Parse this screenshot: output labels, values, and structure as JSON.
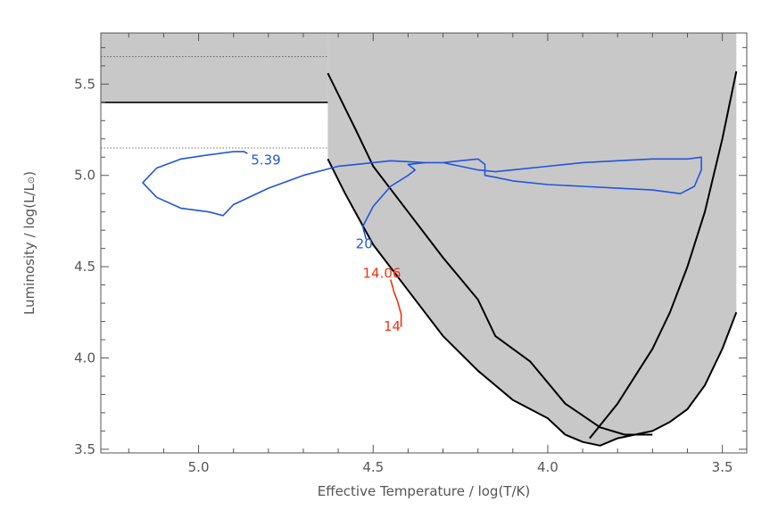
{
  "chart_data": {
    "type": "line",
    "title": "",
    "xlabel": "Effective Temperature / log(T/K)",
    "ylabel": "Luminosity / log(L/L",
    "ylabel_symbol": "⊙",
    "ylabel_close": ")",
    "xlim": [
      5.28,
      3.43
    ],
    "ylim": [
      3.48,
      5.78
    ],
    "x_ticks": [
      5.0,
      4.5,
      4.0,
      3.5
    ],
    "x_tick_labels": [
      "5.0",
      "4.5",
      "4.0",
      "3.5"
    ],
    "y_ticks": [
      3.5,
      4.0,
      4.5,
      5.0,
      5.5
    ],
    "y_tick_labels": [
      "3.5",
      "4.0",
      "4.5",
      "5.0",
      "5.5"
    ],
    "grid": false,
    "colors": {
      "shade": "#c8c8c8",
      "boundary": "#000000",
      "track_blue": "#2255dd",
      "track_red": "#ee3311",
      "text": "#555555"
    },
    "shaded_region": {
      "upper_band": {
        "x_start": 5.28,
        "x_end": 4.63,
        "y_bottom": 5.4
      },
      "main": {
        "x_left": 4.63,
        "x_right": 3.46,
        "lower_edge": [
          [
            4.63,
            5.09
          ],
          [
            4.58,
            4.9
          ],
          [
            4.5,
            4.62
          ],
          [
            4.4,
            4.37
          ],
          [
            4.3,
            4.12
          ],
          [
            4.2,
            3.93
          ],
          [
            4.1,
            3.77
          ],
          [
            4.0,
            3.67
          ],
          [
            3.95,
            3.58
          ],
          [
            3.9,
            3.54
          ],
          [
            3.85,
            3.52
          ],
          [
            3.8,
            3.56
          ],
          [
            3.75,
            3.58
          ],
          [
            3.7,
            3.6
          ],
          [
            3.65,
            3.65
          ],
          [
            3.6,
            3.72
          ],
          [
            3.55,
            3.85
          ],
          [
            3.5,
            4.05
          ],
          [
            3.46,
            4.25
          ]
        ]
      }
    },
    "horizontal_lines": [
      {
        "name": "solid",
        "y": 5.4,
        "x_start": 5.28,
        "x_end": 4.63,
        "style": "solid"
      },
      {
        "name": "dotted-upper",
        "y": 5.65,
        "x_start": 5.28,
        "x_end": 4.63,
        "style": "dotted"
      },
      {
        "name": "dotted-lower",
        "y": 5.15,
        "x_start": 5.28,
        "x_end": 4.63,
        "style": "dotted"
      }
    ],
    "boundary_curves": [
      {
        "name": "boundary-lower",
        "points": [
          [
            4.63,
            5.09
          ],
          [
            4.58,
            4.9
          ],
          [
            4.5,
            4.62
          ],
          [
            4.4,
            4.37
          ],
          [
            4.3,
            4.12
          ],
          [
            4.2,
            3.93
          ],
          [
            4.1,
            3.77
          ],
          [
            4.0,
            3.67
          ],
          [
            3.95,
            3.58
          ],
          [
            3.9,
            3.54
          ],
          [
            3.85,
            3.52
          ],
          [
            3.8,
            3.56
          ],
          [
            3.75,
            3.58
          ],
          [
            3.7,
            3.6
          ],
          [
            3.65,
            3.65
          ],
          [
            3.6,
            3.72
          ],
          [
            3.55,
            3.85
          ],
          [
            3.5,
            4.05
          ],
          [
            3.46,
            4.25
          ]
        ]
      },
      {
        "name": "boundary-middle",
        "points": [
          [
            4.63,
            5.56
          ],
          [
            4.55,
            5.25
          ],
          [
            4.5,
            5.05
          ],
          [
            4.4,
            4.8
          ],
          [
            4.3,
            4.55
          ],
          [
            4.2,
            4.32
          ],
          [
            4.15,
            4.12
          ],
          [
            4.05,
            3.98
          ],
          [
            3.95,
            3.75
          ],
          [
            3.85,
            3.62
          ],
          [
            3.78,
            3.58
          ],
          [
            3.7,
            3.58
          ]
        ]
      },
      {
        "name": "boundary-right",
        "points": [
          [
            3.88,
            3.56
          ],
          [
            3.8,
            3.75
          ],
          [
            3.7,
            4.05
          ],
          [
            3.65,
            4.25
          ],
          [
            3.6,
            4.5
          ],
          [
            3.55,
            4.8
          ],
          [
            3.5,
            5.2
          ],
          [
            3.46,
            5.57
          ]
        ]
      }
    ],
    "series": [
      {
        "name": "20",
        "color": "#2255dd",
        "points": [
          [
            4.52,
            4.65
          ],
          [
            4.53,
            4.72
          ],
          [
            4.5,
            4.83
          ],
          [
            4.45,
            4.94
          ],
          [
            4.4,
            5.0
          ],
          [
            4.38,
            5.03
          ],
          [
            4.4,
            5.06
          ],
          [
            4.35,
            5.07
          ],
          [
            4.3,
            5.07
          ],
          [
            4.25,
            5.05
          ],
          [
            4.2,
            5.03
          ],
          [
            4.15,
            5.02
          ],
          [
            4.1,
            5.03
          ],
          [
            4.0,
            5.05
          ],
          [
            3.9,
            5.07
          ],
          [
            3.8,
            5.08
          ],
          [
            3.7,
            5.09
          ],
          [
            3.6,
            5.09
          ],
          [
            3.56,
            5.1
          ],
          [
            3.56,
            5.03
          ],
          [
            3.58,
            4.94
          ],
          [
            3.62,
            4.9
          ],
          [
            3.7,
            4.92
          ],
          [
            3.8,
            4.93
          ],
          [
            3.9,
            4.94
          ],
          [
            4.0,
            4.95
          ],
          [
            4.1,
            4.97
          ],
          [
            4.15,
            4.99
          ],
          [
            4.18,
            5.0
          ],
          [
            4.18,
            5.06
          ],
          [
            4.2,
            5.09
          ],
          [
            4.25,
            5.08
          ],
          [
            4.3,
            5.07
          ],
          [
            4.35,
            5.07
          ],
          [
            4.45,
            5.08
          ],
          [
            4.5,
            5.07
          ],
          [
            4.6,
            5.05
          ],
          [
            4.7,
            5.0
          ],
          [
            4.8,
            4.93
          ],
          [
            4.9,
            4.84
          ],
          [
            4.93,
            4.78
          ],
          [
            4.97,
            4.8
          ],
          [
            5.05,
            4.82
          ],
          [
            5.12,
            4.88
          ],
          [
            5.16,
            4.96
          ],
          [
            5.12,
            5.04
          ],
          [
            5.05,
            5.09
          ],
          [
            4.98,
            5.11
          ],
          [
            4.9,
            5.13
          ],
          [
            4.87,
            5.13
          ],
          [
            4.86,
            5.12
          ]
        ],
        "end_label": "20",
        "end_label_at": [
          4.55,
          4.6
        ]
      },
      {
        "name": "14",
        "color": "#ee3311",
        "points": [
          [
            4.42,
            4.17
          ],
          [
            4.42,
            4.24
          ],
          [
            4.43,
            4.31
          ],
          [
            4.44,
            4.36
          ],
          [
            4.45,
            4.43
          ]
        ],
        "start_label": "14",
        "start_label_at": [
          4.47,
          4.15
        ]
      }
    ],
    "annotations": [
      {
        "text": "5.39",
        "x": 4.85,
        "y": 5.06,
        "color": "#2255dd"
      },
      {
        "text": "20",
        "x": 4.55,
        "y": 4.6,
        "color": "#2255dd"
      },
      {
        "text": "14.06",
        "x": 4.53,
        "y": 4.44,
        "color": "#ee3311"
      },
      {
        "text": "14",
        "x": 4.47,
        "y": 4.15,
        "color": "#ee3311"
      }
    ]
  }
}
